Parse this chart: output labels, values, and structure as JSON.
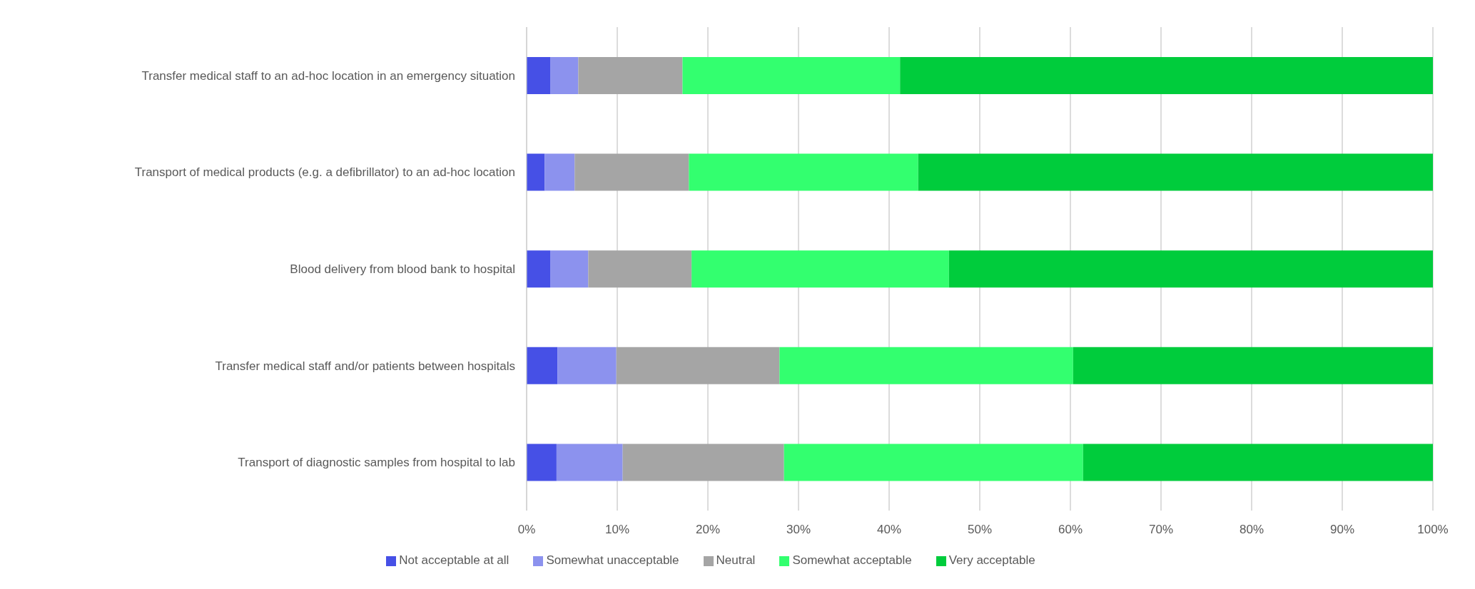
{
  "chart_data": {
    "type": "bar",
    "orientation": "horizontal",
    "stacked": true,
    "categories": [
      "Transfer medical staff to an ad-hoc location in an emergency situation",
      "Transport of medical products (e.g. a defibrillator) to an ad-hoc location",
      "Blood delivery from blood bank to hospital",
      "Transfer medical staff and/or patients between hospitals",
      "Transport of diagnostic samples from hospital to lab"
    ],
    "series": [
      {
        "name": "Not acceptable at all",
        "color": "#4650e6",
        "values": [
          2.6,
          2.0,
          2.6,
          3.4,
          3.3
        ]
      },
      {
        "name": "Somewhat unacceptable",
        "color": "#8c92ee",
        "values": [
          3.1,
          3.3,
          4.2,
          6.5,
          7.3
        ]
      },
      {
        "name": "Neutral",
        "color": "#a5a5a5",
        "values": [
          11.5,
          12.6,
          11.4,
          18.0,
          17.8
        ]
      },
      {
        "name": "Somewhat acceptable",
        "color": "#33ff6f",
        "values": [
          24.0,
          25.3,
          28.4,
          32.4,
          33.0
        ]
      },
      {
        "name": "Very acceptable",
        "color": "#00cc3c",
        "values": [
          58.8,
          56.8,
          53.4,
          39.7,
          38.6
        ]
      }
    ],
    "xlim": [
      0,
      100
    ],
    "xticks": [
      {
        "value": 0,
        "label": "0%"
      },
      {
        "value": 10,
        "label": "10%"
      },
      {
        "value": 20,
        "label": "20%"
      },
      {
        "value": 30,
        "label": "30%"
      },
      {
        "value": 40,
        "label": "40%"
      },
      {
        "value": 50,
        "label": "50%"
      },
      {
        "value": 60,
        "label": "60%"
      },
      {
        "value": 70,
        "label": "70%"
      },
      {
        "value": 80,
        "label": "80%"
      },
      {
        "value": 90,
        "label": "90%"
      },
      {
        "value": 100,
        "label": "100%"
      }
    ],
    "grid": "x",
    "legend": "bottom"
  }
}
